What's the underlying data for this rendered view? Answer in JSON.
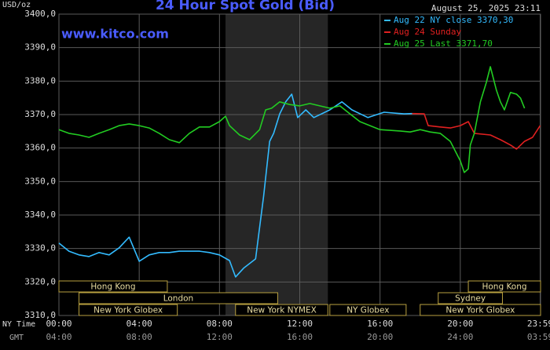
{
  "chart_data": {
    "type": "line",
    "title": "24 Hour Spot Gold (Bid)",
    "watermark": "www.kitco.com",
    "timestamp": "August 25, 2025 23:11",
    "ylabel": "USD/oz",
    "xlabel": "NY Time",
    "x2label": "GMT",
    "grid": true,
    "background": "#000000",
    "grid_color": "#5a5a5a",
    "xlim": [
      0,
      24
    ],
    "ylim": [
      3310,
      3400
    ],
    "yticks": [
      {
        "value": 3310,
        "label": "3310,0"
      },
      {
        "value": 3320,
        "label": "3320,0"
      },
      {
        "value": 3330,
        "label": "3330,0"
      },
      {
        "value": 3340,
        "label": "3340,0"
      },
      {
        "value": 3350,
        "label": "3350,0"
      },
      {
        "value": 3360,
        "label": "3360,0"
      },
      {
        "value": 3370,
        "label": "3370,0"
      },
      {
        "value": 3380,
        "label": "3380,0"
      },
      {
        "value": 3390,
        "label": "3390,0"
      },
      {
        "value": 3400,
        "label": "3400,0"
      }
    ],
    "xticks": [
      {
        "value": 0,
        "label": "00:00"
      },
      {
        "value": 4,
        "label": "04:00"
      },
      {
        "value": 8,
        "label": "08:00"
      },
      {
        "value": 12,
        "label": "12:00"
      },
      {
        "value": 16,
        "label": "16:00"
      },
      {
        "value": 20,
        "label": "20:00"
      },
      {
        "value": 23.98,
        "label": "23:59"
      }
    ],
    "x2ticks": [
      {
        "value": 0,
        "label": "04:00"
      },
      {
        "value": 4,
        "label": "08:00"
      },
      {
        "value": 8,
        "label": "12:00"
      },
      {
        "value": 12,
        "label": "16:00"
      },
      {
        "value": 16,
        "label": "20:00"
      },
      {
        "value": 20,
        "label": "24:00"
      },
      {
        "value": 23.98,
        "label": "03:59"
      }
    ],
    "shaded_xlim": [
      8.3,
      13.4
    ],
    "sessions": [
      {
        "name": "Hong Kong",
        "row": 1,
        "xlim": [
          0,
          5.4
        ]
      },
      {
        "name": "London",
        "row": 2,
        "xlim": [
          1.0,
          10.9
        ]
      },
      {
        "name": "New York Globex",
        "row": 3,
        "xlim": [
          1.0,
          5.9
        ]
      },
      {
        "name": "New York NYMEX",
        "row": 3,
        "xlim": [
          8.8,
          13.4
        ]
      },
      {
        "name": "NY Globex",
        "row": 3,
        "xlim": [
          13.5,
          17.3
        ]
      },
      {
        "name": "Hong Kong",
        "row": 1,
        "xlim": [
          20.4,
          24
        ]
      },
      {
        "name": "Sydney",
        "row": 2,
        "xlim": [
          18.9,
          22.1
        ]
      },
      {
        "name": "New York Globex",
        "row": 3,
        "xlim": [
          18.0,
          24
        ]
      }
    ],
    "series": [
      {
        "name": "Aug 22 NY close 3370,30",
        "color": "#33bbff",
        "x": [
          0,
          0.5,
          1,
          1.5,
          2,
          2.5,
          3,
          3.5,
          4,
          4.5,
          5,
          5.5,
          6,
          6.5,
          7,
          7.5,
          8,
          8.5,
          8.8,
          9.2,
          9.8,
          10.2,
          10.5,
          10.7,
          11,
          11.3,
          11.6,
          11.9,
          12.3,
          12.7,
          13.5,
          14.1,
          14.6,
          15.4,
          16.2,
          17.2,
          17.6
        ],
        "values": [
          3331.6,
          3329.2,
          3328.1,
          3327.6,
          3328.8,
          3328.1,
          3330.2,
          3333.4,
          3326.2,
          3328.1,
          3328.8,
          3328.8,
          3329.2,
          3329.2,
          3329.2,
          3328.8,
          3328.1,
          3326.4,
          3321.5,
          3324.1,
          3326.9,
          3345.6,
          3362.0,
          3364.4,
          3370.2,
          3373.8,
          3376.1,
          3369.1,
          3371.4,
          3369.1,
          3371.4,
          3373.8,
          3371.4,
          3369.1,
          3370.7,
          3370.2,
          3370.3
        ]
      },
      {
        "name": "Aug 24 Sunday",
        "color": "#e02020",
        "x": [
          17.6,
          18.2,
          18.4,
          19,
          19.5,
          20,
          20.4,
          20.7,
          21.5,
          22,
          22.5,
          22.8,
          23.2,
          23.6,
          23.98
        ],
        "values": [
          3370.3,
          3370.2,
          3366.7,
          3366.3,
          3366.0,
          3366.7,
          3367.9,
          3364.4,
          3363.9,
          3362.5,
          3360.9,
          3359.7,
          3362.0,
          3363.2,
          3366.7
        ]
      },
      {
        "name": "Aug 25 Last 3371,70",
        "color": "#22cc22",
        "x": [
          0,
          0.5,
          1,
          1.5,
          2,
          2.5,
          3,
          3.5,
          4,
          4.5,
          5,
          5.5,
          6,
          6.5,
          7,
          7.5,
          8,
          8.3,
          8.5,
          9,
          9.5,
          10,
          10.3,
          10.6,
          11,
          11.5,
          12,
          12.5,
          13,
          13.5,
          14,
          14.5,
          15,
          15.5,
          16,
          17,
          17.5,
          18,
          18.5,
          19,
          19.5,
          20,
          20.2,
          20.4,
          20.5,
          20.7,
          21,
          21.3,
          21.5,
          21.8,
          22,
          22.2,
          22.5,
          22.8,
          23,
          23.2
        ],
        "values": [
          3365.5,
          3364.4,
          3363.9,
          3363.2,
          3364.4,
          3365.5,
          3366.7,
          3367.2,
          3366.7,
          3366.0,
          3364.4,
          3362.5,
          3361.6,
          3364.4,
          3366.3,
          3366.3,
          3367.9,
          3369.5,
          3366.7,
          3363.9,
          3362.5,
          3365.5,
          3371.4,
          3371.9,
          3373.8,
          3373.0,
          3372.6,
          3373.3,
          3372.6,
          3371.9,
          3372.6,
          3370.2,
          3367.9,
          3366.7,
          3365.5,
          3365.1,
          3364.8,
          3365.5,
          3364.8,
          3364.4,
          3362.0,
          3356.2,
          3352.7,
          3353.8,
          3360.9,
          3364.4,
          3373.8,
          3379.6,
          3384.3,
          3377.3,
          3373.8,
          3371.4,
          3376.6,
          3376.1,
          3374.9,
          3371.9
        ]
      }
    ]
  }
}
